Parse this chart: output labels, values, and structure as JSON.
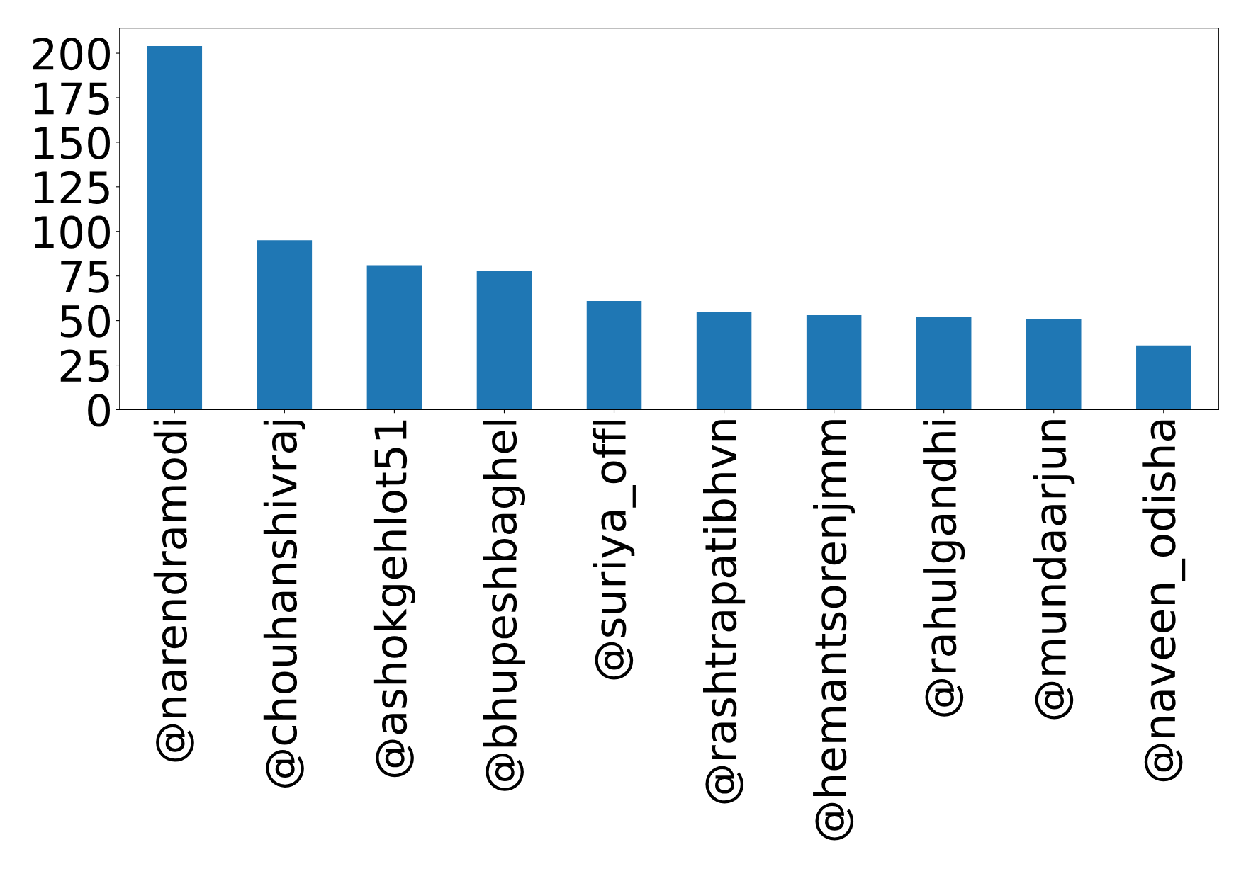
{
  "chart_data": {
    "type": "bar",
    "categories": [
      "@narendramodi",
      "@chouhanshivraj",
      "@ashokgehlot51",
      "@bhupeshbaghel",
      "@suriya_offl",
      "@rashtrapatibhvn",
      "@hemantsorenjmm",
      "@rahulgandhi",
      "@mundaarjun",
      "@naveen_odisha"
    ],
    "values": [
      204,
      95,
      81,
      78,
      61,
      55,
      53,
      52,
      51,
      36
    ],
    "color": "#1f77b4",
    "ylim": [
      0,
      214
    ],
    "yticks": [
      0,
      25,
      50,
      75,
      100,
      125,
      150,
      175,
      200
    ],
    "grid": false,
    "legend": false
  }
}
